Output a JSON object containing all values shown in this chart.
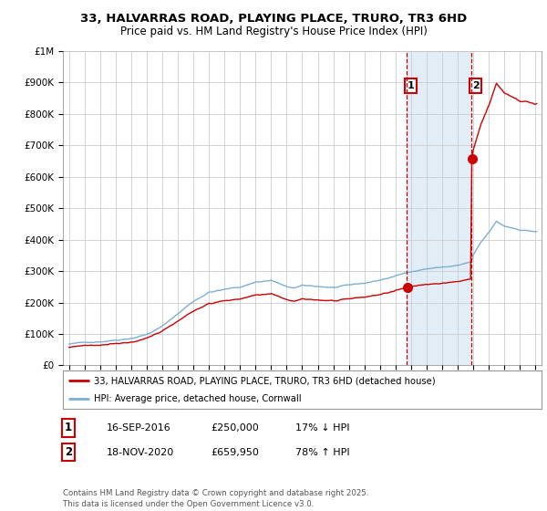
{
  "title": "33, HALVARRAS ROAD, PLAYING PLACE, TRURO, TR3 6HD",
  "subtitle": "Price paid vs. HM Land Registry's House Price Index (HPI)",
  "title_fontsize": 9.5,
  "subtitle_fontsize": 8.5,
  "ylim": [
    0,
    1000000
  ],
  "yticks": [
    0,
    100000,
    200000,
    300000,
    400000,
    500000,
    600000,
    700000,
    800000,
    900000,
    1000000
  ],
  "ytick_labels": [
    "£0",
    "£100K",
    "£200K",
    "£300K",
    "£400K",
    "£500K",
    "£600K",
    "£700K",
    "£800K",
    "£900K",
    "£1M"
  ],
  "hpi_color": "#7BAFD4",
  "price_color": "#CC0000",
  "vline_color": "#CC0000",
  "shade_color": "#D6E8F5",
  "sale1_year": 2016.71,
  "sale2_year": 2020.88,
  "sale1_price": 250000,
  "sale2_price": 659950,
  "legend1_label": "33, HALVARRAS ROAD, PLAYING PLACE, TRURO, TR3 6HD (detached house)",
  "legend2_label": "HPI: Average price, detached house, Cornwall",
  "table_data": [
    {
      "num": "1",
      "date": "16-SEP-2016",
      "price": "£250,000",
      "hpi": "17% ↓ HPI"
    },
    {
      "num": "2",
      "date": "18-NOV-2020",
      "price": "£659,950",
      "hpi": "78% ↑ HPI"
    }
  ],
  "footer": "Contains HM Land Registry data © Crown copyright and database right 2025.\nThis data is licensed under the Open Government Licence v3.0.",
  "background_color": "#FFFFFF",
  "grid_color": "#CCCCCC"
}
